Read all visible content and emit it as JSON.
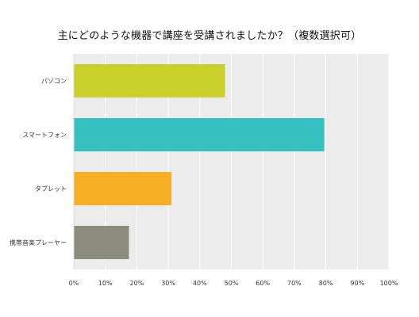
{
  "chart_data": {
    "type": "bar",
    "orientation": "horizontal",
    "title": "主にどのような機器で講座を受講されましたか？（複数選択可）",
    "categories": [
      "パソコン",
      "スマートフォン",
      "タブレット",
      "携帯音楽プレーヤー"
    ],
    "values": [
      48,
      79.5,
      31,
      17.5
    ],
    "value_unit": "%",
    "xlim": [
      0,
      100
    ],
    "x_ticks": [
      "0%",
      "10%",
      "20%",
      "30%",
      "40%",
      "50%",
      "60%",
      "70%",
      "80%",
      "90%",
      "100%"
    ],
    "grid": true,
    "legend": "none",
    "colors": [
      "#c9d02c",
      "#37c0c0",
      "#f5ae25",
      "#8c8c7c"
    ],
    "plot_background": "#ececec",
    "gridline_color": "#ffffff"
  }
}
